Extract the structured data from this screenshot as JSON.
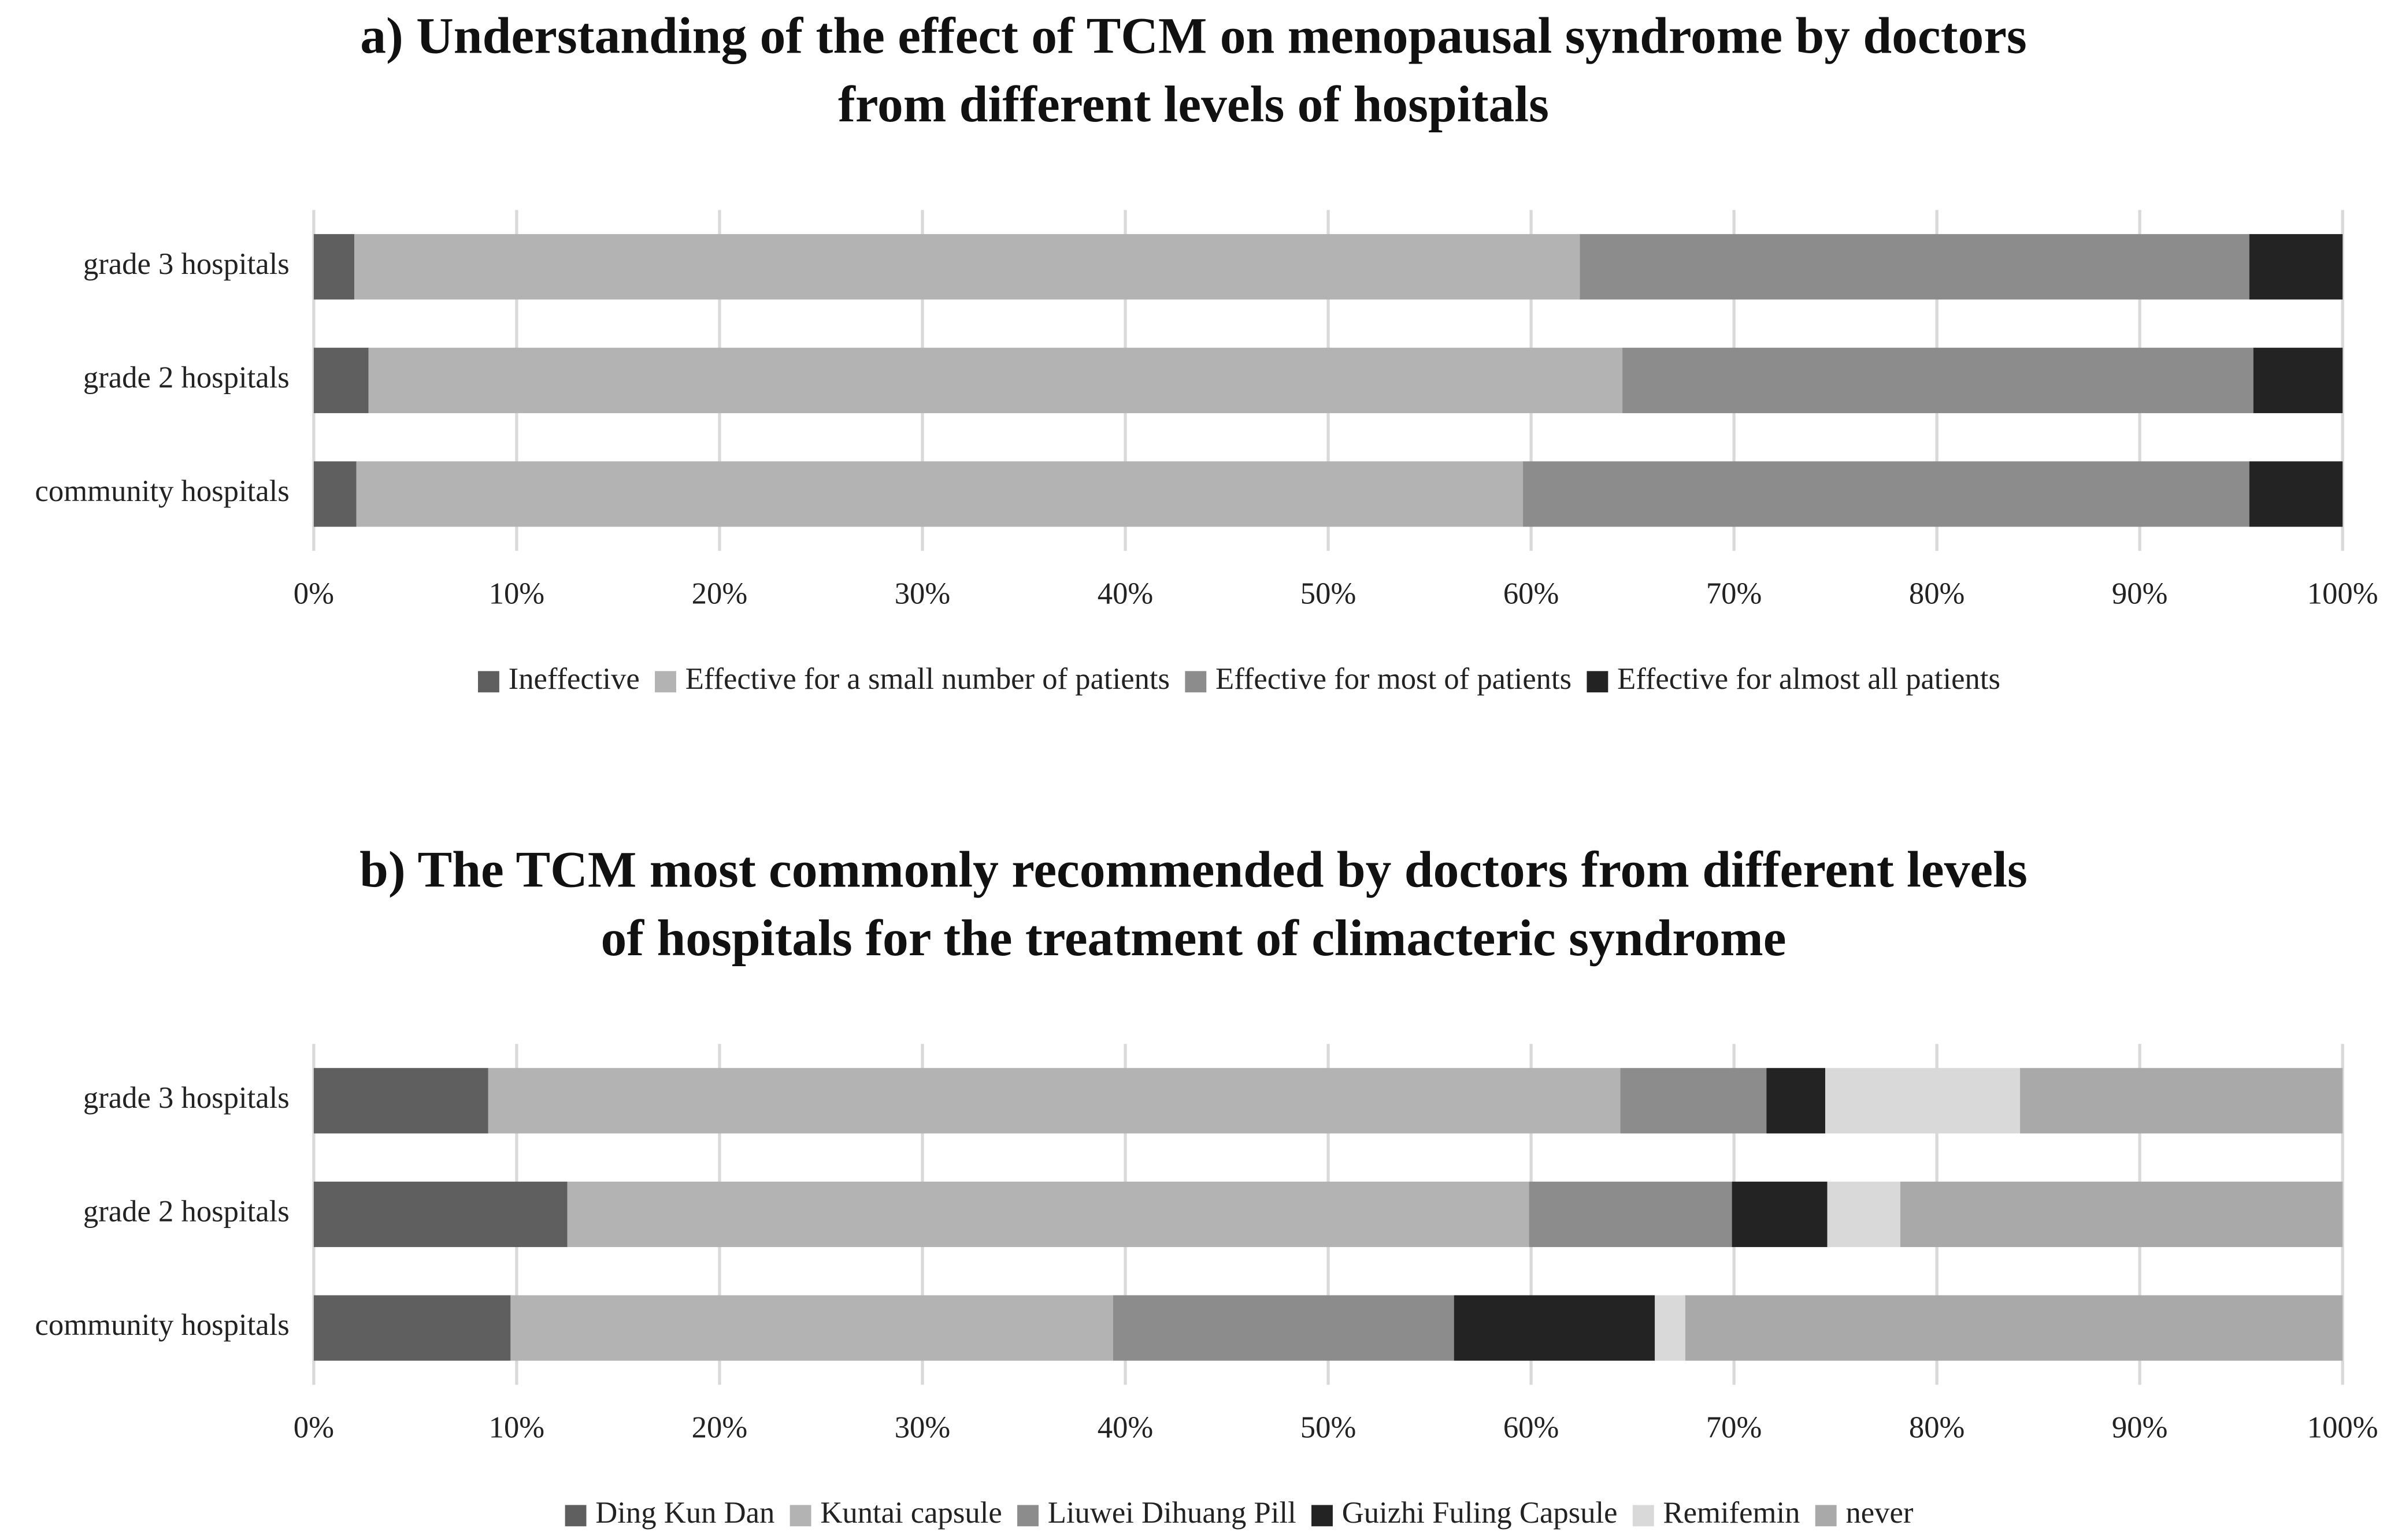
{
  "chart_data": [
    {
      "type": "stacked-bar-horizontal",
      "title": [
        "a) Understanding of the effect of TCM on menopausal syndrome by doctors",
        "from different levels of hospitals"
      ],
      "categories": [
        "grade 3 hospitals",
        "grade 2 hospitals",
        "community hospitals"
      ],
      "series": [
        {
          "name": "Ineffective",
          "color": "#5f5f5f",
          "values": [
            2.0,
            2.7,
            2.1
          ]
        },
        {
          "name": "Effective for a small number of patients",
          "color": "#b3b3b3",
          "values": [
            60.4,
            61.8,
            57.5
          ]
        },
        {
          "name": "Effective for most of patients",
          "color": "#8c8c8c",
          "values": [
            33.0,
            31.1,
            35.8
          ]
        },
        {
          "name": "Effective for almost all patients",
          "color": "#232323",
          "values": [
            4.6,
            4.4,
            4.6
          ]
        }
      ],
      "xlim": [
        0,
        100
      ],
      "xticks": [
        {
          "value": 0,
          "label": "0%"
        },
        {
          "value": 10,
          "label": "10%"
        },
        {
          "value": 20,
          "label": "20%"
        },
        {
          "value": 30,
          "label": "30%"
        },
        {
          "value": 40,
          "label": "40%"
        },
        {
          "value": 50,
          "label": "50%"
        },
        {
          "value": 60,
          "label": "60%"
        },
        {
          "value": 70,
          "label": "70%"
        },
        {
          "value": 80,
          "label": "80%"
        },
        {
          "value": 90,
          "label": "90%"
        },
        {
          "value": 100,
          "label": "100%"
        }
      ],
      "grid": true,
      "legend": "bottom"
    },
    {
      "type": "stacked-bar-horizontal",
      "title": [
        "b) The TCM most commonly recommended by doctors from different levels",
        "of hospitals for the treatment of climacteric syndrome"
      ],
      "categories": [
        "grade 3 hospitals",
        "grade 2 hospitals",
        "community hospitals"
      ],
      "series": [
        {
          "name": "Ding Kun Dan",
          "color": "#5f5f5f",
          "values": [
            8.6,
            12.5,
            9.7
          ]
        },
        {
          "name": "Kuntai capsule",
          "color": "#b3b3b3",
          "values": [
            55.8,
            47.4,
            29.7
          ]
        },
        {
          "name": "Liuwei Dihuang Pill",
          "color": "#8c8c8c",
          "values": [
            7.2,
            10.0,
            16.8
          ]
        },
        {
          "name": "Guizhi Fuling Capsule",
          "color": "#232323",
          "values": [
            2.9,
            4.7,
            9.9
          ]
        },
        {
          "name": "Remifemin",
          "color": "#d9d9d9",
          "values": [
            9.6,
            3.6,
            1.5
          ]
        },
        {
          "name": "never",
          "color": "#a9a9a9",
          "values": [
            15.9,
            21.8,
            32.4
          ]
        }
      ],
      "xlim": [
        0,
        100
      ],
      "xticks": [
        {
          "value": 0,
          "label": "0%"
        },
        {
          "value": 10,
          "label": "10%"
        },
        {
          "value": 20,
          "label": "20%"
        },
        {
          "value": 30,
          "label": "30%"
        },
        {
          "value": 40,
          "label": "40%"
        },
        {
          "value": 50,
          "label": "50%"
        },
        {
          "value": 60,
          "label": "60%"
        },
        {
          "value": 70,
          "label": "70%"
        },
        {
          "value": 80,
          "label": "80%"
        },
        {
          "value": 90,
          "label": "90%"
        },
        {
          "value": 100,
          "label": "100%"
        }
      ],
      "grid": true,
      "legend": "bottom"
    }
  ]
}
